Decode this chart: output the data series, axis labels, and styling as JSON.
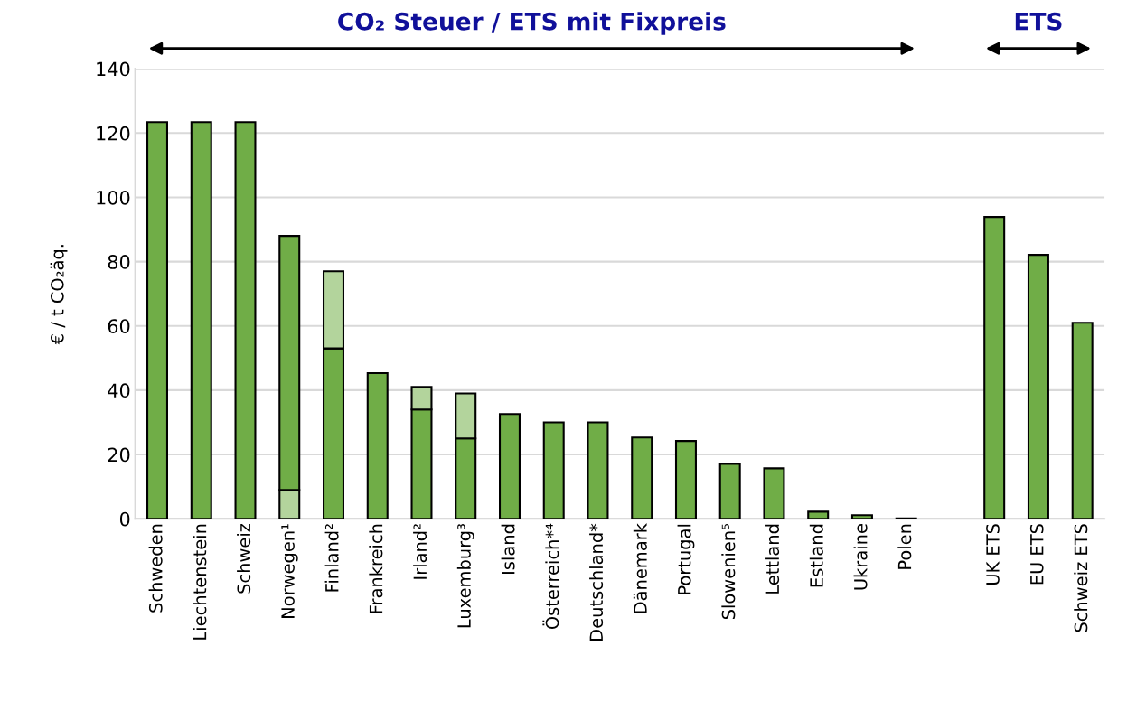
{
  "chart_data": {
    "type": "bar",
    "stacked": true,
    "ylabel": "€ / t CO₂äq.",
    "categories": [
      "Schweden",
      "Liechtenstein",
      "Schweiz",
      "Norwegen¹",
      "Finland²",
      "Frankreich",
      "Irland²",
      "Luxemburg³",
      "Island",
      "Österreich*⁴",
      "Deutschland*",
      "Dänemark",
      "Portugal",
      "Slowenien⁵",
      "Lettland",
      "Estland",
      "Ukraine",
      "Polen",
      null,
      "UK ETS",
      "EU ETS",
      "Schweiz ETS"
    ],
    "series": [
      {
        "color": "#b3d49c",
        "values": [
          null,
          null,
          null,
          9,
          null,
          null,
          null,
          null,
          null,
          null,
          null,
          null,
          null,
          null,
          null,
          null,
          null,
          null,
          null,
          null,
          null,
          null
        ]
      },
      {
        "color": "#70ad47",
        "values": [
          123.4,
          123.4,
          123.4,
          79,
          53,
          45.3,
          34,
          25,
          32.6,
          30,
          30,
          25.3,
          24.2,
          17.1,
          15.7,
          2.2,
          1.1,
          0.1,
          null,
          93.9,
          82.1,
          61
        ]
      },
      {
        "color": "#b3d49c",
        "values": [
          null,
          null,
          null,
          null,
          24,
          null,
          7,
          14,
          null,
          null,
          null,
          null,
          null,
          null,
          null,
          null,
          null,
          null,
          null,
          null,
          null,
          null
        ]
      }
    ],
    "ylim": [
      0,
      140
    ],
    "yticks": [
      0,
      20,
      40,
      60,
      80,
      100,
      120,
      140
    ],
    "grid": "y",
    "annotations": [
      "CO₂ Steuer / ETS mit Fixpreis",
      "ETS"
    ]
  }
}
